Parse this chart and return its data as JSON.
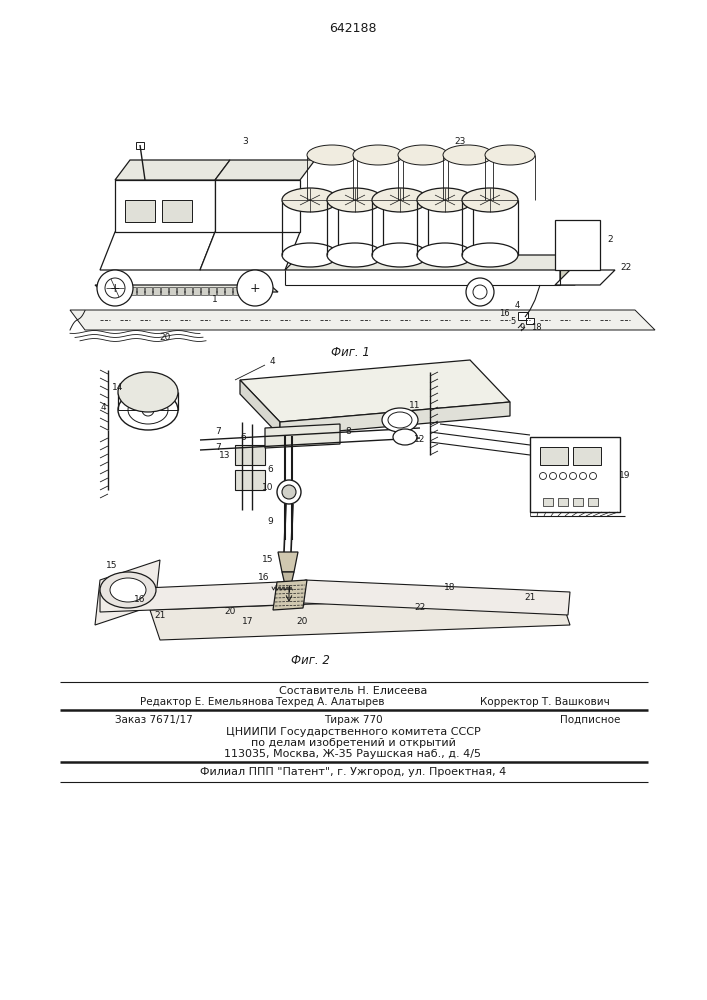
{
  "patent_number": "642188",
  "fig1_caption": "Фиг. 1",
  "fig2_caption": "Фиг. 2",
  "footer_line1": "Составитель Н. Елисеева",
  "footer_line2_col1": "Редактор Е. Емельянова",
  "footer_line2_col2": "Техред А. Алатырев",
  "footer_line2_col3": "Корректор Т. Вашкович",
  "footer_line3_col1": "Заказ 7671/17",
  "footer_line3_col2": "Тираж 770",
  "footer_line3_col3": "Подписное",
  "footer_line4": "ЦНИИПИ Государственного комитета СССР",
  "footer_line5": "по делам изобретений и открытий",
  "footer_line6": "113035, Москва, Ж-35 Раушская наб., д. 4/5",
  "footer_line7": "Филиал ППП \"Патент\", г. Ужгород, ул. Проектная, 4",
  "bg_color": "#ffffff",
  "line_color": "#1a1a1a"
}
